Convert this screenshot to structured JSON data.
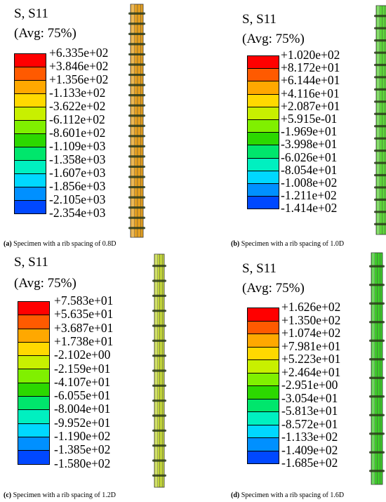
{
  "colors": [
    "#ff0000",
    "#ff5a00",
    "#ffa800",
    "#ffd900",
    "#c8f000",
    "#80f000",
    "#2cd800",
    "#00e66c",
    "#00f0c0",
    "#00d8ff",
    "#0090ff",
    "#0048ff",
    "#0000ff"
  ],
  "panels": [
    {
      "id": "a",
      "title": "S, S11",
      "avg": "(Avg: 75%)",
      "labels": [
        "+6.335e+02",
        "+3.846e+02",
        "+1.356e+02",
        "-1.133e+02",
        "-3.622e+02",
        "-6.112e+02",
        "-8.601e+02",
        "-1.109e+03",
        "-1.358e+03",
        "-1.607e+03",
        "-1.856e+03",
        "-2.105e+03",
        "-2.354e+03"
      ],
      "caption_tag": "(a)",
      "caption_text": " Specimen with a rib spacing of 0.8D",
      "rebar_color": "#e5a020"
    },
    {
      "id": "b",
      "title": "S, S11",
      "avg": "(Avg: 75%)",
      "labels": [
        "+1.020e+02",
        "+8.172e+01",
        "+6.144e+01",
        "+4.116e+01",
        "+2.087e+01",
        "+5.915e-01",
        "-1.969e+01",
        "-3.998e+01",
        "-6.026e+01",
        "-8.054e+01",
        "-1.008e+02",
        "-1.211e+02",
        "-1.414e+02"
      ],
      "caption_tag": "(b)",
      "caption_text": " Specimen with a rib spacing of 1.0D",
      "rebar_color": "#5ed63a"
    },
    {
      "id": "c",
      "title": "S, S11",
      "avg": "(Avg: 75%)",
      "labels": [
        "+7.583e+01",
        "+5.635e+01",
        "+3.687e+01",
        "+1.738e+01",
        "-2.102e+00",
        "-2.159e+01",
        "-4.107e+01",
        "-6.055e+01",
        "-8.004e+01",
        "-9.952e+01",
        "-1.190e+02",
        "-1.385e+02",
        "-1.580e+02"
      ],
      "caption_tag": "(c)",
      "caption_text": " Specimen with a rib spacing of 1.2D",
      "rebar_color": "#c4d83a"
    },
    {
      "id": "d",
      "title": "S, S11",
      "avg": "(Avg: 75%)",
      "labels": [
        "+1.626e+02",
        "+1.350e+02",
        "+1.074e+02",
        "+7.981e+01",
        "+5.223e+01",
        "+2.464e+01",
        "-2.951e+00",
        "-3.054e+01",
        "-5.813e+01",
        "-8.572e+01",
        "-1.133e+02",
        "-1.409e+02",
        "-1.685e+02"
      ],
      "caption_tag": "(d)",
      "caption_text": " Specimen with a rib spacing of 1.6D",
      "rebar_color": "#3ecc2a"
    }
  ]
}
